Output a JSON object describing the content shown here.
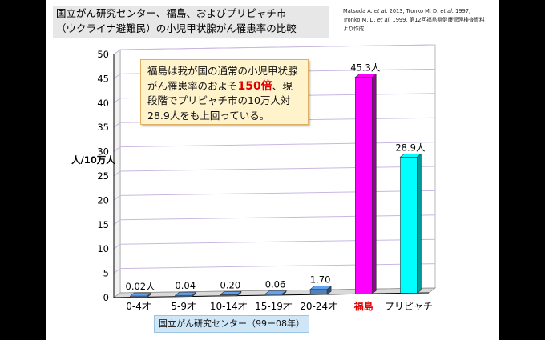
{
  "title": {
    "line1": "国立がん研究センター、福島、およびプリピャチ市",
    "line2": "（ウクライナ避難民）の小児甲状腺がん罹患率の比較"
  },
  "source": {
    "line1_prefix": "Matsuda A. ",
    "line1_etal": "et al.",
    "line1_mid": " 2013, Tronko M. D. ",
    "line1_etal2": "et al.",
    "line1_suffix": " 1997,",
    "line2_prefix": "Tronko M. D. ",
    "line2_etal": "et al.",
    "line2_suffix": " 1999, 第12回福島県健康管理検査資料",
    "line3": "より作成"
  },
  "callout": {
    "part1": "福島は我が国の通常の小児甲状腺がん罹患率のおよそ",
    "highlight": "150倍",
    "part2": "、現段階でプリピャチ市の10万人対28.9人をも上回っている。"
  },
  "footer_label": "国立がん研究センター（99ー08年）",
  "colors": {
    "ncc_bar": "#4f81bd",
    "fukushima_bar": "#ff00ff",
    "pripyat_bar": "#00ffff",
    "fukushima_label": "#e00000",
    "grid": "#c8b8e0"
  },
  "chart_data": {
    "type": "bar",
    "categories": [
      "0-4才",
      "5-9才",
      "10-14才",
      "15-19才",
      "20-24才",
      "福島",
      "プリピャチ"
    ],
    "values": [
      0.02,
      0.04,
      0.2,
      0.06,
      1.7,
      45.3,
      28.9
    ],
    "data_labels": [
      "0.02人",
      "0.04",
      "0.20",
      "0.06",
      "1.70",
      "45.3人",
      "28.9人"
    ],
    "ylabel": "人/10万人",
    "ylim": [
      0,
      50
    ],
    "yticks": [
      0,
      5,
      10,
      15,
      20,
      25,
      30,
      35,
      40,
      45,
      50
    ],
    "grid": true
  }
}
